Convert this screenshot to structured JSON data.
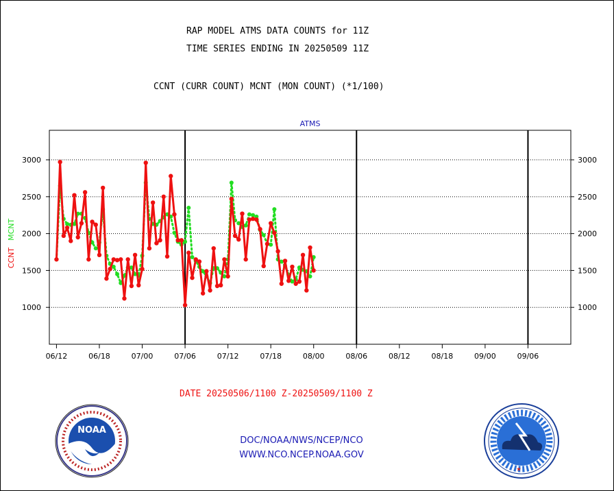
{
  "header": {
    "title_line1": "RAP MODEL ATMS DATA COUNTS for 11Z",
    "title_line2": "TIME SERIES ENDING IN 20250509 11Z",
    "subtitle": "CCNT (CURR COUNT) MCNT (MON COUNT) (*1/100)"
  },
  "footer": {
    "date_range": "DATE 20250506/1100 Z-20250509/1100 Z",
    "link1": "DOC/NOAA/NWS/NCEP/NCO",
    "link2": "WWW.NCO.NCEP.NOAA.GOV"
  },
  "colors": {
    "ccnt": "#ee1111",
    "mcnt": "#22dd22",
    "axis_title": "#1a1ab4",
    "frame": "#000000",
    "grid": "#000000"
  },
  "chart_data": {
    "type": "line",
    "title": "ATMS",
    "ylabel_left": [
      "CCNT",
      "MCNT"
    ],
    "ylim": [
      500,
      3400
    ],
    "yticks": [
      1000,
      1500,
      2000,
      2500,
      3000
    ],
    "xlim": [
      -2,
      144
    ],
    "x_tick_positions": [
      0,
      12,
      24,
      36,
      48,
      60,
      72,
      84,
      96,
      108,
      120,
      132
    ],
    "x_tick_labels": [
      "06/12",
      "06/18",
      "07/00",
      "07/06",
      "07/12",
      "07/18",
      "08/00",
      "08/06",
      "08/12",
      "08/18",
      "09/00",
      "09/06"
    ],
    "day_boundaries": [
      36,
      84,
      132
    ],
    "grid": "horizontal dotted",
    "series": [
      {
        "name": "CCNT",
        "color": "#ee1111",
        "style": "solid",
        "values": [
          1650,
          2970,
          1970,
          2080,
          1900,
          2520,
          1950,
          2140,
          2560,
          1650,
          2160,
          2120,
          1710,
          2620,
          1390,
          1520,
          1650,
          1640,
          1650,
          1120,
          1650,
          1290,
          1710,
          1300,
          1520,
          2960,
          1800,
          2420,
          1870,
          1910,
          2500,
          1690,
          2780,
          2260,
          1910,
          1910,
          1030,
          1740,
          1400,
          1650,
          1620,
          1190,
          1490,
          1230,
          1800,
          1290,
          1300,
          1650,
          1420,
          2470,
          1970,
          1920,
          2270,
          1650,
          2190,
          2200,
          2190,
          2060,
          1560,
          1860,
          2140,
          2010,
          1760,
          1320,
          1630,
          1360,
          1550,
          1320,
          1350,
          1710,
          1230,
          1810,
          1500
        ]
      },
      {
        "name": "MCNT",
        "color": "#22dd22",
        "style": "dotted",
        "values": [
          1650,
          2650,
          2200,
          2130,
          2120,
          2130,
          2270,
          2270,
          2210,
          2010,
          1880,
          1800,
          1880,
          2330,
          1700,
          1590,
          1550,
          1450,
          1330,
          1430,
          1540,
          1540,
          1450,
          1430,
          1700,
          2690,
          2200,
          2130,
          2120,
          2170,
          2220,
          2260,
          2230,
          2010,
          1890,
          1850,
          1890,
          2350,
          1680,
          1630,
          1550,
          1490,
          1420,
          1330,
          1530,
          1530,
          1470,
          1420,
          1650,
          2690,
          2180,
          2140,
          2090,
          2110,
          2260,
          2250,
          2230,
          2050,
          1980,
          1860,
          1850,
          2330,
          1650,
          1620,
          1560,
          1440,
          1350,
          1380,
          1540,
          1510,
          1490,
          1420,
          1680
        ]
      }
    ]
  }
}
